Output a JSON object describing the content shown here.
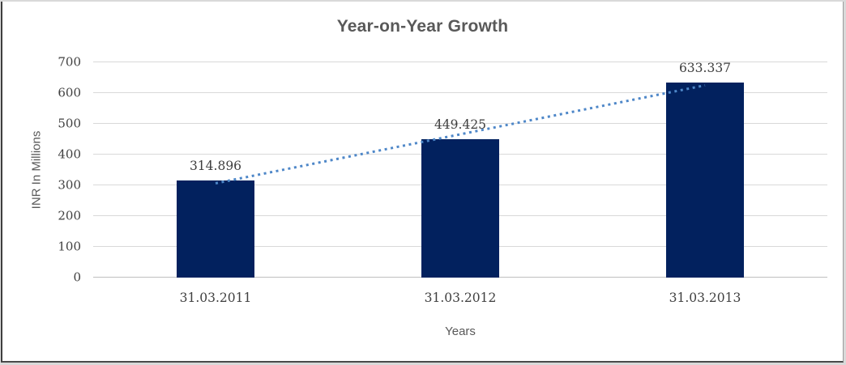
{
  "chart_data": {
    "type": "bar",
    "title": "Year-on-Year Growth",
    "xlabel": "Years",
    "ylabel": "INR In Millions",
    "categories": [
      "31.03.2011",
      "31.03.2012",
      "31.03.2013"
    ],
    "values": [
      314.896,
      449.425,
      633.337
    ],
    "data_labels": [
      "314.896",
      "449.425",
      "633.337"
    ],
    "yticks": [
      0,
      100,
      200,
      300,
      400,
      500,
      600,
      700
    ],
    "ylim": [
      0,
      700
    ],
    "grid": true,
    "legend": "none",
    "trendline": {
      "type": "linear",
      "style": "dotted",
      "color": "#4e87c8"
    },
    "colors": {
      "bar": "#02215e",
      "gridline": "#d9d9d9",
      "axis_line": "#bfbfbf",
      "title_text": "#595959",
      "axis_title_text": "#595959",
      "tick_text": "#404040",
      "data_label_text": "#3d3d3d"
    }
  }
}
